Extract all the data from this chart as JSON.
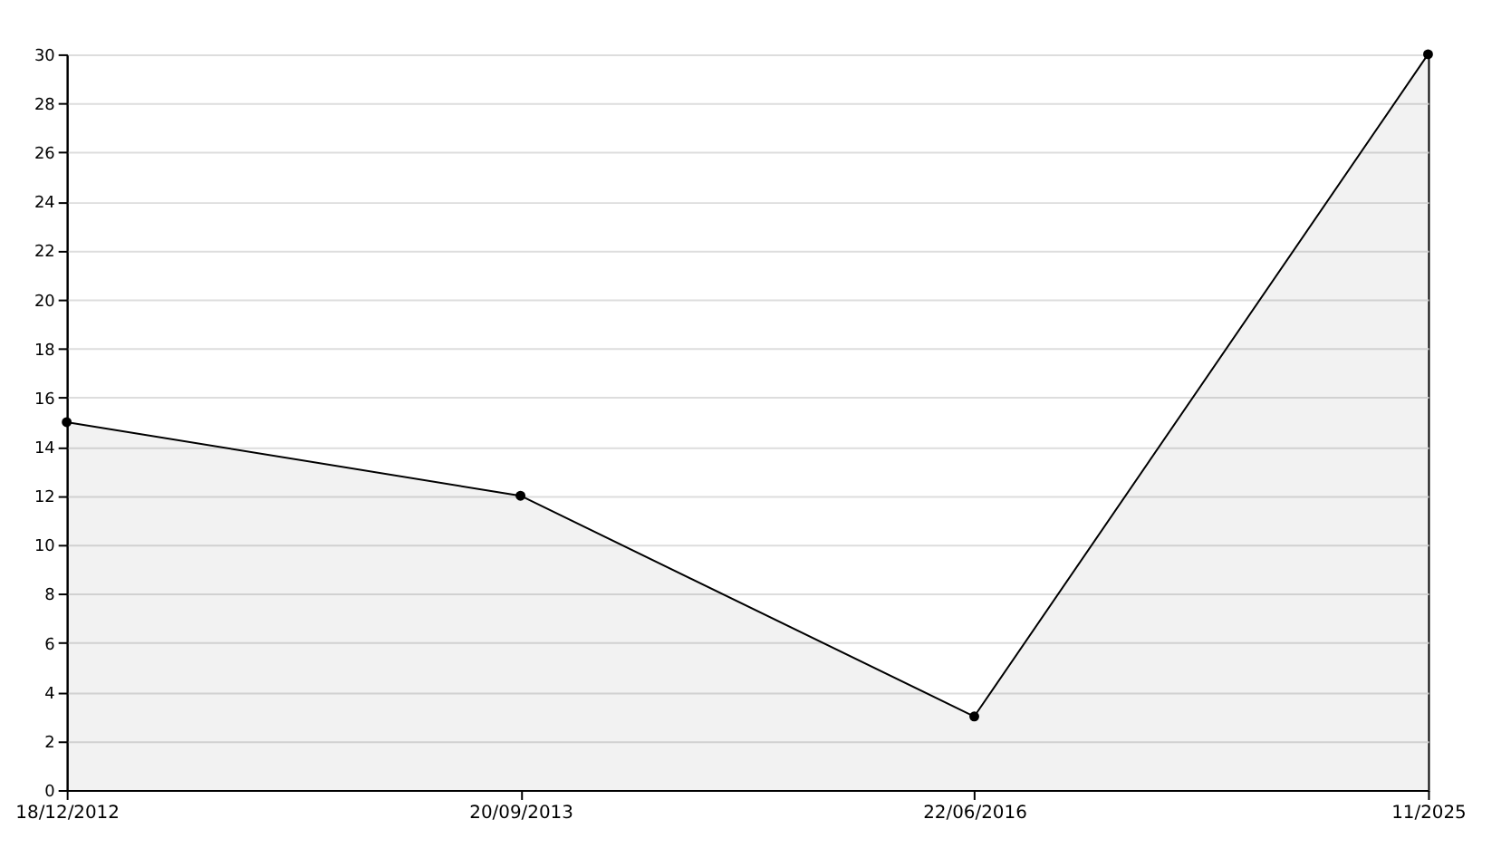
{
  "chart_data": {
    "type": "area",
    "categories": [
      "18/12/2012",
      "20/09/2013",
      "22/06/2016",
      "11/2025"
    ],
    "series": [
      {
        "color": "#000000",
        "values": [
          15,
          12,
          3,
          30
        ]
      }
    ],
    "ylim": [
      0,
      30
    ],
    "yticks": [
      0,
      2,
      4,
      6,
      8,
      10,
      12,
      14,
      16,
      18,
      20,
      22,
      24,
      26,
      28,
      30
    ],
    "grid": "y",
    "marker": "circle",
    "line_style": "solid"
  }
}
